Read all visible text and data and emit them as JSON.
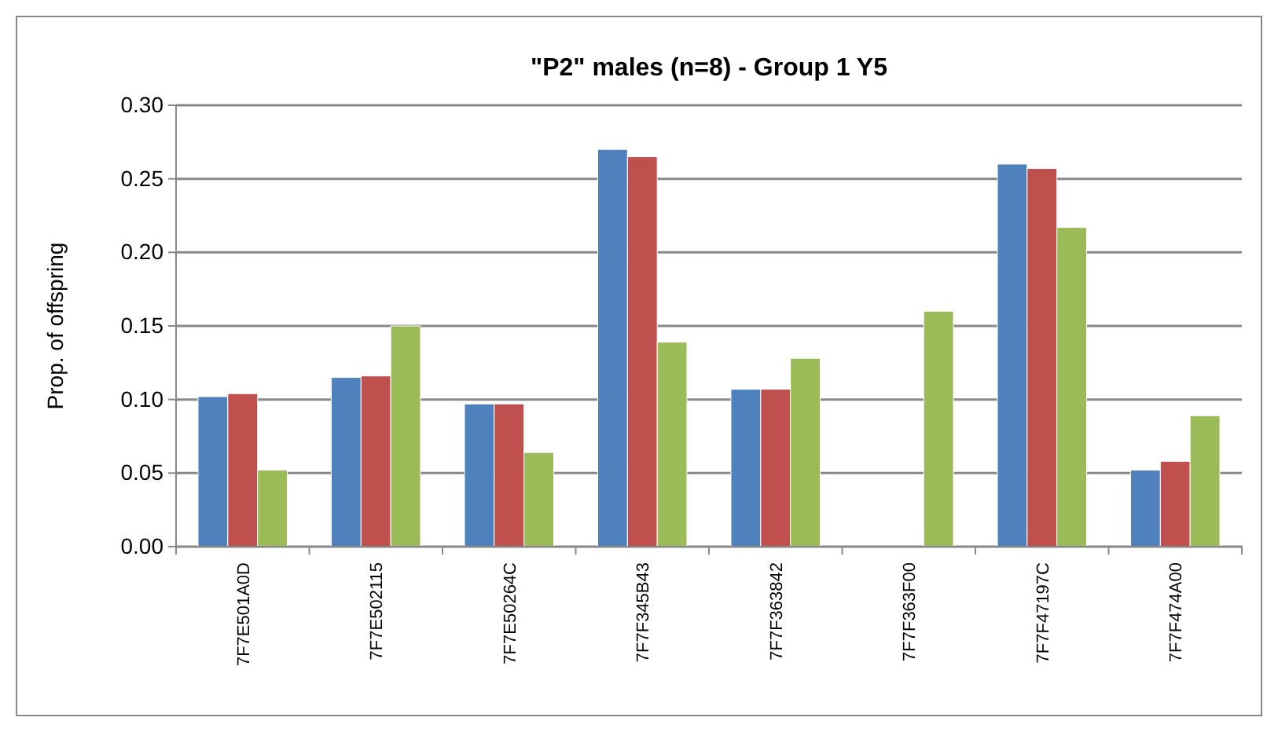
{
  "chart_data": {
    "type": "bar",
    "title": "\"P2\" males (n=8) - Group 1 Y5",
    "ylabel": "Prop. of offspring",
    "categories": [
      "7F7E501A0D",
      "7F7E502115",
      "7F7E50264C",
      "7F7F345B43",
      "7F7F363842",
      "7F7F363F00",
      "7F7F47197C",
      "7F7F474A00"
    ],
    "series": [
      {
        "color": "#4f81bd",
        "values": [
          0.102,
          0.115,
          0.097,
          0.27,
          0.107,
          0,
          0.26,
          0.052
        ]
      },
      {
        "color": "#c0504d",
        "values": [
          0.104,
          0.116,
          0.097,
          0.265,
          0.107,
          0,
          0.257,
          0.058
        ]
      },
      {
        "color": "#9bbb59",
        "values": [
          0.052,
          0.15,
          0.064,
          0.139,
          0.128,
          0.16,
          0.217,
          0.089
        ]
      }
    ],
    "ylim": [
      0,
      0.3
    ],
    "yticks": [
      {
        "value": 0,
        "label": "0.00"
      },
      {
        "value": 0.05,
        "label": "0.05"
      },
      {
        "value": 0.1,
        "label": "0.10"
      },
      {
        "value": 0.15,
        "label": "0.15"
      },
      {
        "value": 0.2,
        "label": "0.20"
      },
      {
        "value": 0.25,
        "label": "0.25"
      },
      {
        "value": 0.3,
        "label": "0.30"
      }
    ],
    "grid": "y"
  }
}
